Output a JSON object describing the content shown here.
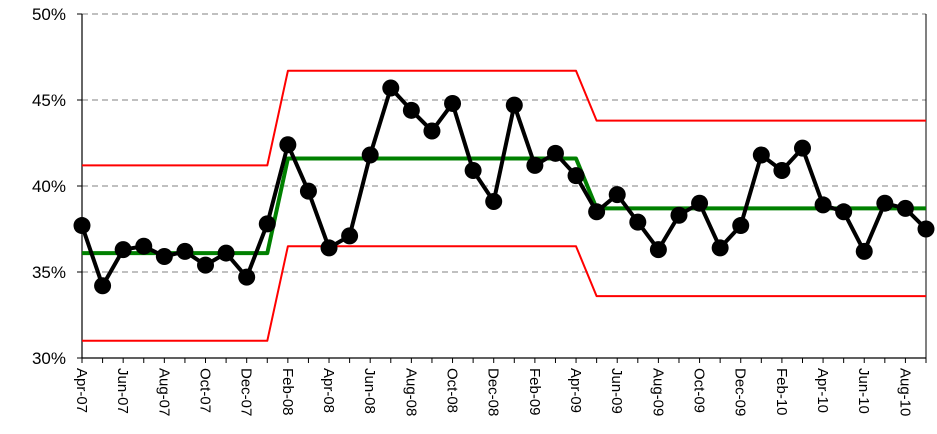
{
  "chart_data": {
    "type": "line",
    "title": "",
    "xlabel": "",
    "ylabel": "",
    "ylim": [
      0.3,
      0.5
    ],
    "y_ticks": [
      0.3,
      0.35,
      0.4,
      0.45,
      0.5
    ],
    "y_tick_labels": [
      "30%",
      "35%",
      "40%",
      "45%",
      "50%"
    ],
    "grid": "horizontal dashed",
    "x": [
      "Apr-07",
      "May-07",
      "Jun-07",
      "Jul-07",
      "Aug-07",
      "Sep-07",
      "Oct-07",
      "Nov-07",
      "Dec-07",
      "Jan-08",
      "Feb-08",
      "Mar-08",
      "Apr-08",
      "May-08",
      "Jun-08",
      "Jul-08",
      "Aug-08",
      "Sep-08",
      "Oct-08",
      "Nov-08",
      "Dec-08",
      "Jan-09",
      "Feb-09",
      "Mar-09",
      "Apr-09",
      "May-09",
      "Jun-09",
      "Jul-09",
      "Aug-09",
      "Sep-09",
      "Oct-09",
      "Nov-09",
      "Dec-09",
      "Jan-10",
      "Feb-10",
      "Mar-10",
      "Apr-10",
      "May-10",
      "Jun-10",
      "Jul-10",
      "Aug-10",
      "Sep-10"
    ],
    "x_tick_labels": [
      "Apr-07",
      "Jun-07",
      "Aug-07",
      "Oct-07",
      "Dec-07",
      "Feb-08",
      "Apr-08",
      "Jun-08",
      "Aug-08",
      "Oct-08",
      "Dec-08",
      "Feb-09",
      "Apr-09",
      "Jun-09",
      "Aug-09",
      "Oct-09",
      "Dec-09",
      "Feb-10",
      "Apr-10",
      "Jun-10",
      "Aug-10"
    ],
    "series": [
      {
        "role": "data",
        "color": "#000000",
        "values": [
          0.377,
          0.342,
          0.363,
          0.365,
          0.359,
          0.362,
          0.354,
          0.361,
          0.347,
          0.378,
          0.424,
          0.397,
          0.364,
          0.371,
          0.418,
          0.457,
          0.444,
          0.432,
          0.448,
          0.409,
          0.391,
          0.447,
          0.412,
          0.419,
          0.406,
          0.385,
          0.395,
          0.379,
          0.363,
          0.383,
          0.39,
          0.364,
          0.377,
          0.418,
          0.409,
          0.422,
          0.389,
          0.385,
          0.362,
          0.39,
          0.387,
          0.375
        ]
      },
      {
        "role": "center line",
        "color": "#008000",
        "values": [
          0.361,
          0.361,
          0.361,
          0.361,
          0.361,
          0.361,
          0.361,
          0.361,
          0.361,
          0.361,
          0.416,
          0.416,
          0.416,
          0.416,
          0.416,
          0.416,
          0.416,
          0.416,
          0.416,
          0.416,
          0.416,
          0.416,
          0.416,
          0.416,
          0.416,
          0.387,
          0.387,
          0.387,
          0.387,
          0.387,
          0.387,
          0.387,
          0.387,
          0.387,
          0.387,
          0.387,
          0.387,
          0.387,
          0.387,
          0.387,
          0.387,
          0.387
        ]
      },
      {
        "role": "upper control limit",
        "color": "#ff0000",
        "values": [
          0.412,
          0.412,
          0.412,
          0.412,
          0.412,
          0.412,
          0.412,
          0.412,
          0.412,
          0.412,
          0.467,
          0.467,
          0.467,
          0.467,
          0.467,
          0.467,
          0.467,
          0.467,
          0.467,
          0.467,
          0.467,
          0.467,
          0.467,
          0.467,
          0.467,
          0.438,
          0.438,
          0.438,
          0.438,
          0.438,
          0.438,
          0.438,
          0.438,
          0.438,
          0.438,
          0.438,
          0.438,
          0.438,
          0.438,
          0.438,
          0.438,
          0.438
        ]
      },
      {
        "role": "lower control limit",
        "color": "#ff0000",
        "values": [
          0.31,
          0.31,
          0.31,
          0.31,
          0.31,
          0.31,
          0.31,
          0.31,
          0.31,
          0.31,
          0.365,
          0.365,
          0.365,
          0.365,
          0.365,
          0.365,
          0.365,
          0.365,
          0.365,
          0.365,
          0.365,
          0.365,
          0.365,
          0.365,
          0.365,
          0.336,
          0.336,
          0.336,
          0.336,
          0.336,
          0.336,
          0.336,
          0.336,
          0.336,
          0.336,
          0.336,
          0.336,
          0.336,
          0.336,
          0.336,
          0.336,
          0.336
        ]
      }
    ]
  }
}
